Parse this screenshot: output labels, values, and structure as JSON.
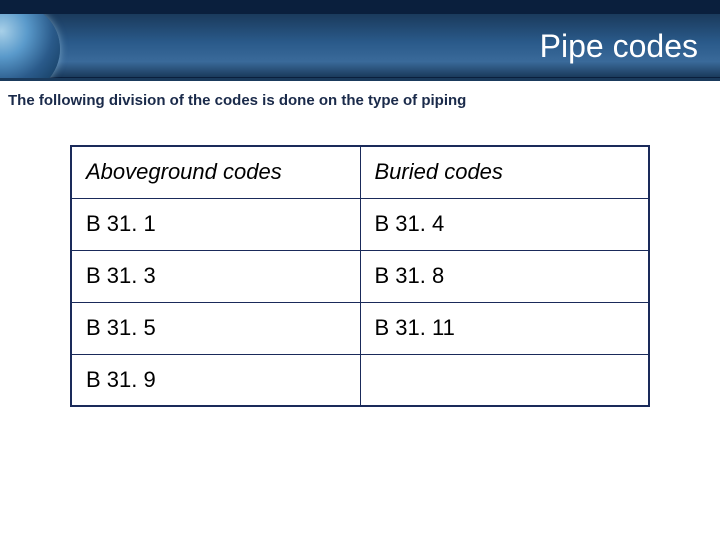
{
  "header": {
    "title": "Pipe codes"
  },
  "intro": "The following division of the codes is done on the type of piping",
  "table": {
    "columns": [
      "Aboveground codes",
      "Buried codes"
    ],
    "rows": [
      [
        "B 31. 1",
        "B 31. 4"
      ],
      [
        "B 31. 3",
        "B 31. 8"
      ],
      [
        "B 31. 5",
        "B 31. 11"
      ],
      [
        "B 31. 9",
        ""
      ]
    ],
    "border_color": "#1a2a5a",
    "header_fontstyle": "italic",
    "cell_fontsize": 22
  },
  "colors": {
    "header_gradient_top": "#0a1f3d",
    "header_gradient_mid": "#2a5a8a",
    "header_gradient_bottom": "#1a3a5c",
    "title_color": "#ffffff",
    "text_color": "#1a2a4a",
    "background": "#ffffff"
  }
}
